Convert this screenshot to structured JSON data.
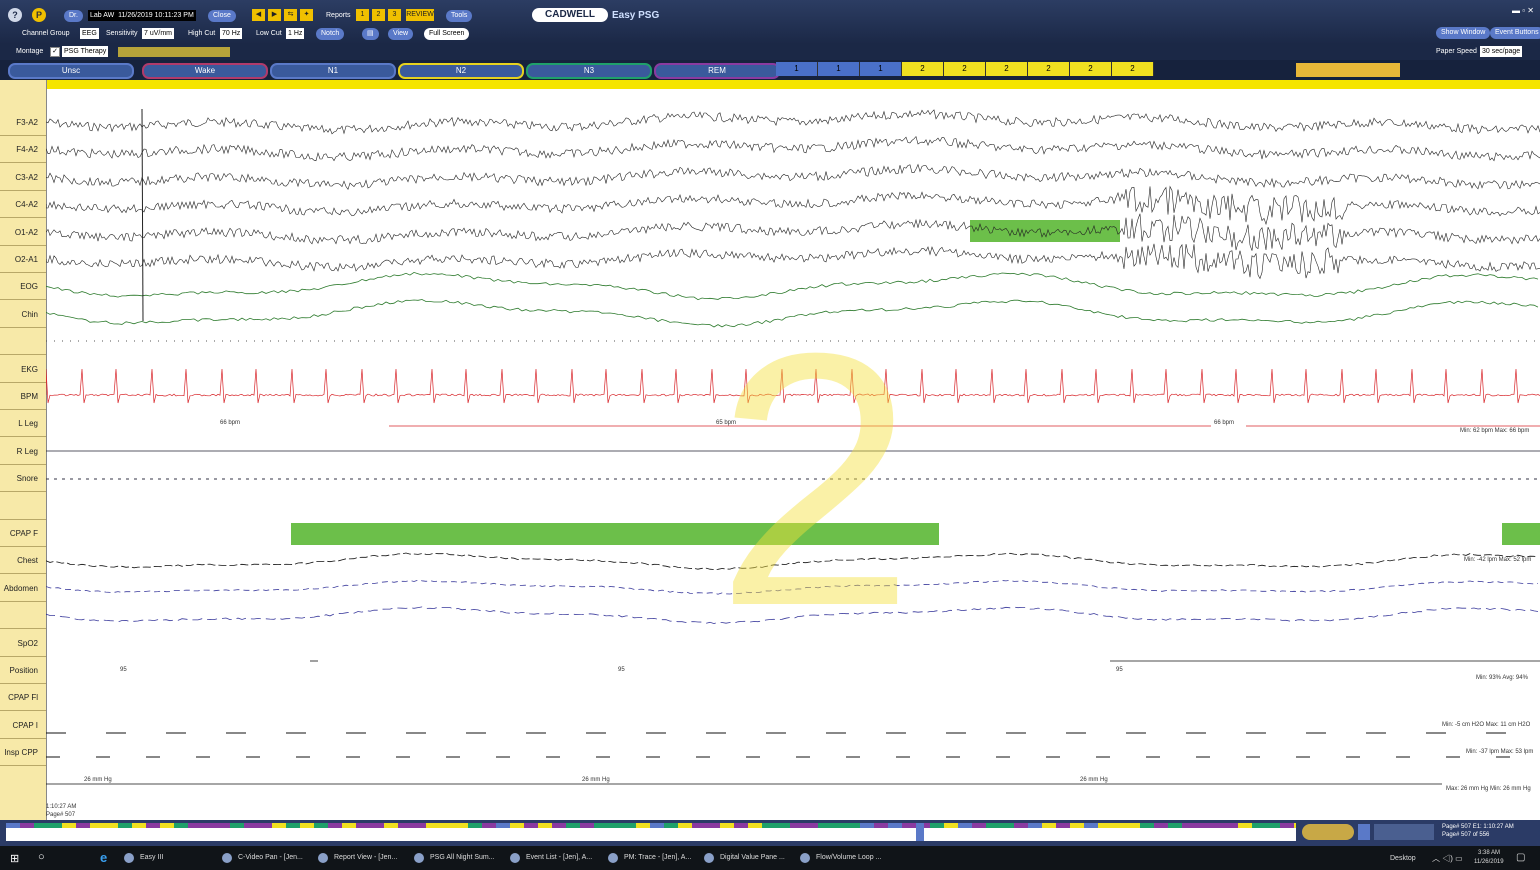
{
  "toolbar": {
    "dr_label": "Dr.",
    "patient": "Lab AW",
    "datetime": "11/26/2019 10:11:23 PM",
    "close": "Close",
    "reports": "Reports",
    "review": "REVIEW",
    "tools": "Tools",
    "logo": "CADWELL",
    "app_name": "Easy PSG",
    "channel_group_label": "Channel Group",
    "channel_group_value": "EEG",
    "sensitivity_label": "Sensitivity",
    "sensitivity_value": "7 uV/mm",
    "high_cut_label": "High Cut",
    "high_cut_value": "70 Hz",
    "low_cut_label": "Low Cut",
    "low_cut_value": "1 Hz",
    "notch_label": "Notch",
    "view_label": "View",
    "view_value": "Full Screen",
    "montage_label": "Montage",
    "montage_value": "PSG Therapy",
    "show_window": "Show Window",
    "event_buttons": "Event Buttons",
    "paper_speed_label": "Paper Speed",
    "paper_speed_value": "30 sec/page"
  },
  "stages": [
    {
      "label": "Unsc",
      "color": "#5a79c8"
    },
    {
      "label": "Wake",
      "color": "#b03a6a"
    },
    {
      "label": "N1",
      "color": "#5a79c8"
    },
    {
      "label": "N2",
      "color": "#e6d21e"
    },
    {
      "label": "N3",
      "color": "#1fa06a"
    },
    {
      "label": "REM",
      "color": "#8a3aa0"
    }
  ],
  "epochs": [
    "1",
    "1",
    "1",
    "2",
    "2",
    "2",
    "2",
    "2",
    "2"
  ],
  "channels": [
    "F3-A2",
    "F4-A2",
    "C3-A2",
    "C4-A2",
    "O1-A2",
    "O2-A1",
    "EOG",
    "Chin",
    "",
    "EKG",
    "BPM",
    "L Leg",
    "R Leg",
    "Snore",
    "",
    "CPAP F",
    "Chest",
    "Abdomen",
    "",
    "SpO2",
    "Position",
    "CPAP Fl",
    "CPAP I",
    "Insp CPP"
  ],
  "annotations": {
    "bpm1": "66 bpm",
    "bpm2": "65 bpm",
    "bpm3": "66 bpm",
    "bpm_minmax": "Min: 62 bpm  Max: 66 bpm",
    "cpap_f_minmax": "Min: -42 lpm  Max: 52 lpm",
    "spo2_a": "95",
    "spo2_b": "95",
    "spo2_c": "95",
    "spo2_minmax": "Min: 93%  Avg: 94%",
    "cpap_fl_minmax": "Min: -5 cm H2O  Max: 11 cm H2O",
    "cpap_i_minmax": "Min: -37 lpm  Max: 53 lpm",
    "insp1": "26 mm Hg",
    "insp2": "26 mm Hg",
    "insp3": "26 mm Hg",
    "insp_minmax": "Max: 26 mm Hg  Min: 26 mm Hg",
    "time_stamp": "1:10:27 AM",
    "page_stamp": "Page# 507"
  },
  "hypno": {
    "page_info": "Page# 507  E1: 1:10:27 AM",
    "page_sub": "Page# 507 of 556"
  },
  "watermark": "2",
  "taskbar": {
    "items": [
      "Easy III",
      "C-Video Pan - [Jen...",
      "Report View - [Jen...",
      "PSG All Night Sum...",
      "Event List - [Jen], A...",
      "PM: Trace - [Jen], A...",
      "Digital Value Pane ...",
      "Flow/Volume Loop ..."
    ],
    "desktop": "Desktop",
    "time": "3:38 AM",
    "date": "11/26/2019"
  }
}
